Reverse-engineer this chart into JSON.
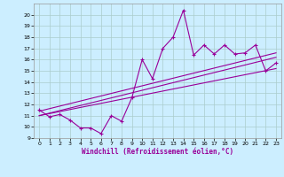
{
  "xlabel": "Windchill (Refroidissement éolien,°C)",
  "bg_color": "#cceeff",
  "grid_color": "#aacccc",
  "line_color": "#990099",
  "x_data": [
    0,
    1,
    2,
    3,
    4,
    5,
    6,
    7,
    8,
    9,
    10,
    11,
    12,
    13,
    14,
    15,
    16,
    17,
    18,
    19,
    20,
    21,
    22,
    23
  ],
  "y_data": [
    11.5,
    10.9,
    11.1,
    10.6,
    9.9,
    9.9,
    9.4,
    11.0,
    10.5,
    12.6,
    16.0,
    14.3,
    17.0,
    18.0,
    20.4,
    16.4,
    17.3,
    16.5,
    17.3,
    16.5,
    16.6,
    17.3,
    15.0,
    15.7
  ],
  "reg1_start": 11.0,
  "reg1_end": 16.2,
  "reg2_start": 11.4,
  "reg2_end": 16.6,
  "reg3_start": 11.0,
  "reg3_end": 15.2,
  "xlim": [
    -0.5,
    23.5
  ],
  "ylim": [
    9,
    21
  ],
  "xticks": [
    0,
    1,
    2,
    3,
    4,
    5,
    6,
    7,
    8,
    9,
    10,
    11,
    12,
    13,
    14,
    15,
    16,
    17,
    18,
    19,
    20,
    21,
    22,
    23
  ],
  "yticks": [
    9,
    10,
    11,
    12,
    13,
    14,
    15,
    16,
    17,
    18,
    19,
    20
  ]
}
